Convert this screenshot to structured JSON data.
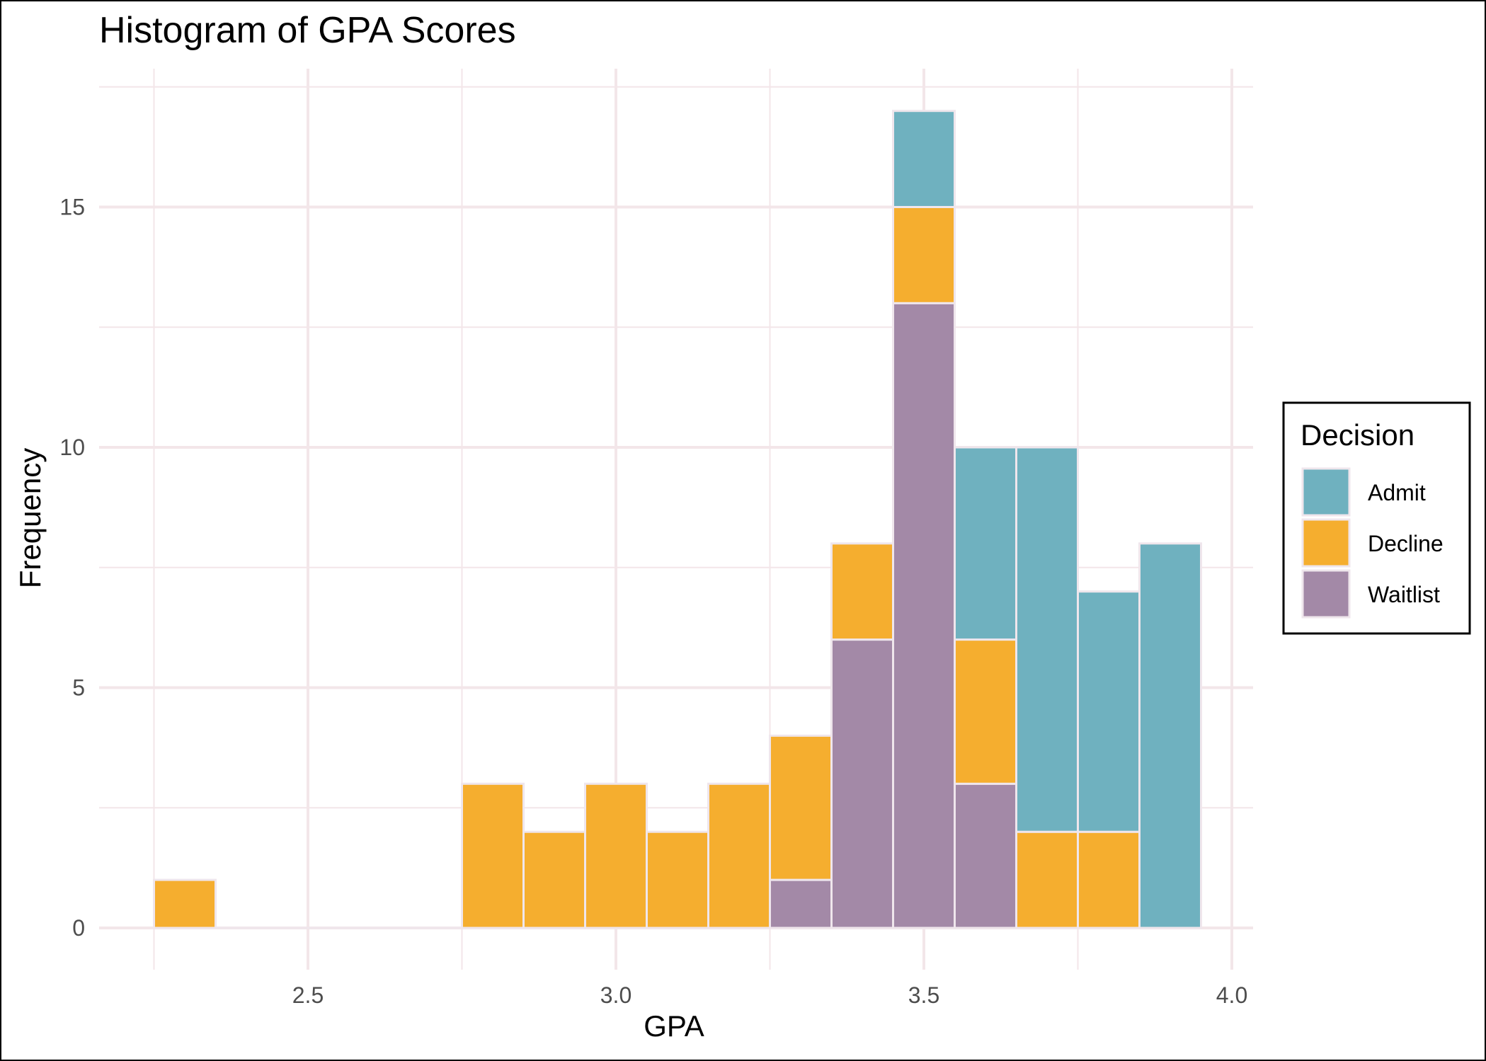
{
  "chart_data": {
    "type": "bar",
    "subtype": "stacked-histogram",
    "title": "Histogram of GPA Scores",
    "xlabel": "GPA",
    "ylabel": "Frequency",
    "xlim": [
      2.2,
      4.05
    ],
    "ylim": [
      -0.5,
      17.6
    ],
    "x_ticks": [
      {
        "value": 2.5,
        "label": "2.5"
      },
      {
        "value": 3.0,
        "label": "3.0"
      },
      {
        "value": 3.5,
        "label": "3.5"
      },
      {
        "value": 4.0,
        "label": "4.0"
      }
    ],
    "y_ticks": [
      {
        "value": 0,
        "label": "0"
      },
      {
        "value": 5,
        "label": "5"
      },
      {
        "value": 10,
        "label": "10"
      },
      {
        "value": 15,
        "label": "15"
      }
    ],
    "bin_width": 0.1,
    "bin_centers": [
      2.3,
      2.4,
      2.5,
      2.6,
      2.7,
      2.8,
      2.9,
      3.0,
      3.1,
      3.2,
      3.3,
      3.4,
      3.5,
      3.6,
      3.7,
      3.8,
      3.9
    ],
    "series": [
      {
        "name": "Waitlist",
        "color": "#a389a7",
        "values": [
          0,
          0,
          0,
          0,
          0,
          0,
          0,
          0,
          0,
          0,
          1,
          6,
          13,
          3,
          0,
          0,
          0
        ]
      },
      {
        "name": "Decline",
        "color": "#f5ae2f",
        "values": [
          1,
          0,
          0,
          0,
          0,
          3,
          2,
          3,
          2,
          3,
          3,
          2,
          2,
          3,
          2,
          2,
          0
        ]
      },
      {
        "name": "Admit",
        "color": "#6fb1bf",
        "values": [
          0,
          0,
          0,
          0,
          0,
          0,
          0,
          0,
          0,
          0,
          0,
          0,
          2,
          4,
          8,
          5,
          8
        ]
      }
    ],
    "stack_order": [
      "Waitlist",
      "Decline",
      "Admit"
    ],
    "grid": true,
    "grid_color": "#f3e6e9",
    "bar_outline_color": "#efe6ec",
    "legend": {
      "title": "Decision",
      "position": "right",
      "items": [
        "Admit",
        "Decline",
        "Waitlist"
      ]
    }
  }
}
